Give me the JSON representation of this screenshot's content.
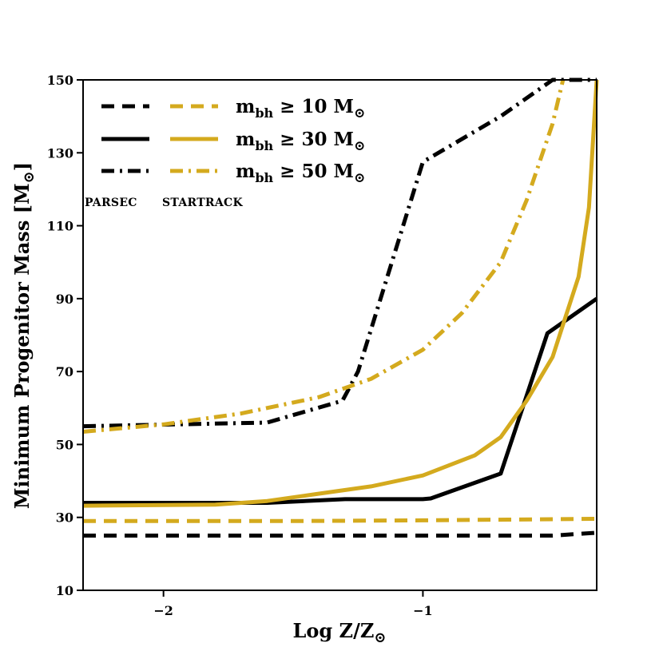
{
  "chart_data": {
    "type": "line",
    "xlabel": "Log Z/Z⊙",
    "ylabel": "Minimum Progenitor Mass [M⊙]",
    "xlim": [
      -2.31,
      -0.33
    ],
    "ylim": [
      10,
      150
    ],
    "xticks": [
      -2,
      -1
    ],
    "xtick_labels": [
      "−2",
      "−1"
    ],
    "yticks": [
      10,
      30,
      50,
      70,
      90,
      110,
      130,
      150
    ],
    "ytick_labels": [
      "10",
      "30",
      "50",
      "70",
      "90",
      "110",
      "130",
      "150"
    ],
    "grid": false,
    "legend": {
      "placement": "top-left",
      "column_headers": [
        "PARSEC",
        "STARTRACK"
      ],
      "entries": [
        {
          "label_main": "m",
          "label_sub": "bh",
          "label_rest": " ≥ 10 M",
          "label_sun": "⊙",
          "dash": "dashed"
        },
        {
          "label_main": "m",
          "label_sub": "bh",
          "label_rest": " ≥ 30 M",
          "label_sun": "⊙",
          "dash": "solid"
        },
        {
          "label_main": "m",
          "label_sub": "bh",
          "label_rest": " ≥ 50 M",
          "label_sun": "⊙",
          "dash": "dashdot"
        }
      ]
    },
    "colors": {
      "parsec": "#000000",
      "startrack": "#d4aa1e"
    },
    "series": [
      {
        "group": "PARSEC",
        "threshold": 10,
        "dash": "dashed",
        "color": "#000000",
        "x": [
          -2.31,
          -1.5,
          -1.0,
          -0.5,
          -0.33
        ],
        "y": [
          25,
          25,
          25,
          25,
          25.8
        ]
      },
      {
        "group": "PARSEC",
        "threshold": 30,
        "dash": "solid",
        "color": "#000000",
        "x": [
          -2.31,
          -1.6,
          -1.3,
          -1.0,
          -0.97,
          -0.7,
          -0.52,
          -0.33
        ],
        "y": [
          34,
          34,
          35,
          35,
          35.2,
          42,
          80.5,
          90
        ]
      },
      {
        "group": "PARSEC",
        "threshold": 50,
        "dash": "dashdot",
        "color": "#000000",
        "x": [
          -2.31,
          -1.6,
          -1.31,
          -1.25,
          -1.0,
          -0.7,
          -0.5,
          -0.33
        ],
        "y": [
          55,
          56,
          62,
          70,
          127.5,
          140,
          150,
          150
        ]
      },
      {
        "group": "STARTRACK",
        "threshold": 10,
        "dash": "dashed",
        "color": "#d4aa1e",
        "x": [
          -2.31,
          -1.5,
          -1.0,
          -0.5,
          -0.33
        ],
        "y": [
          29,
          29,
          29.2,
          29.5,
          29.6
        ]
      },
      {
        "group": "STARTRACK",
        "threshold": 30,
        "dash": "solid",
        "color": "#d4aa1e",
        "x": [
          -2.31,
          -1.8,
          -1.6,
          -1.4,
          -1.2,
          -1.0,
          -0.8,
          -0.7,
          -0.6,
          -0.5,
          -0.45,
          -0.4,
          -0.36,
          -0.33
        ],
        "y": [
          33.2,
          33.5,
          34.5,
          36.5,
          38.5,
          41.5,
          47,
          52,
          62,
          74,
          85,
          96,
          115,
          150
        ]
      },
      {
        "group": "STARTRACK",
        "threshold": 50,
        "dash": "dashdot",
        "color": "#d4aa1e",
        "x": [
          -2.31,
          -2.0,
          -1.7,
          -1.4,
          -1.2,
          -1.0,
          -0.85,
          -0.7,
          -0.6,
          -0.5,
          -0.46
        ],
        "y": [
          53.5,
          55.5,
          58.5,
          63,
          68,
          76,
          86,
          100,
          117,
          138,
          150
        ]
      }
    ]
  }
}
